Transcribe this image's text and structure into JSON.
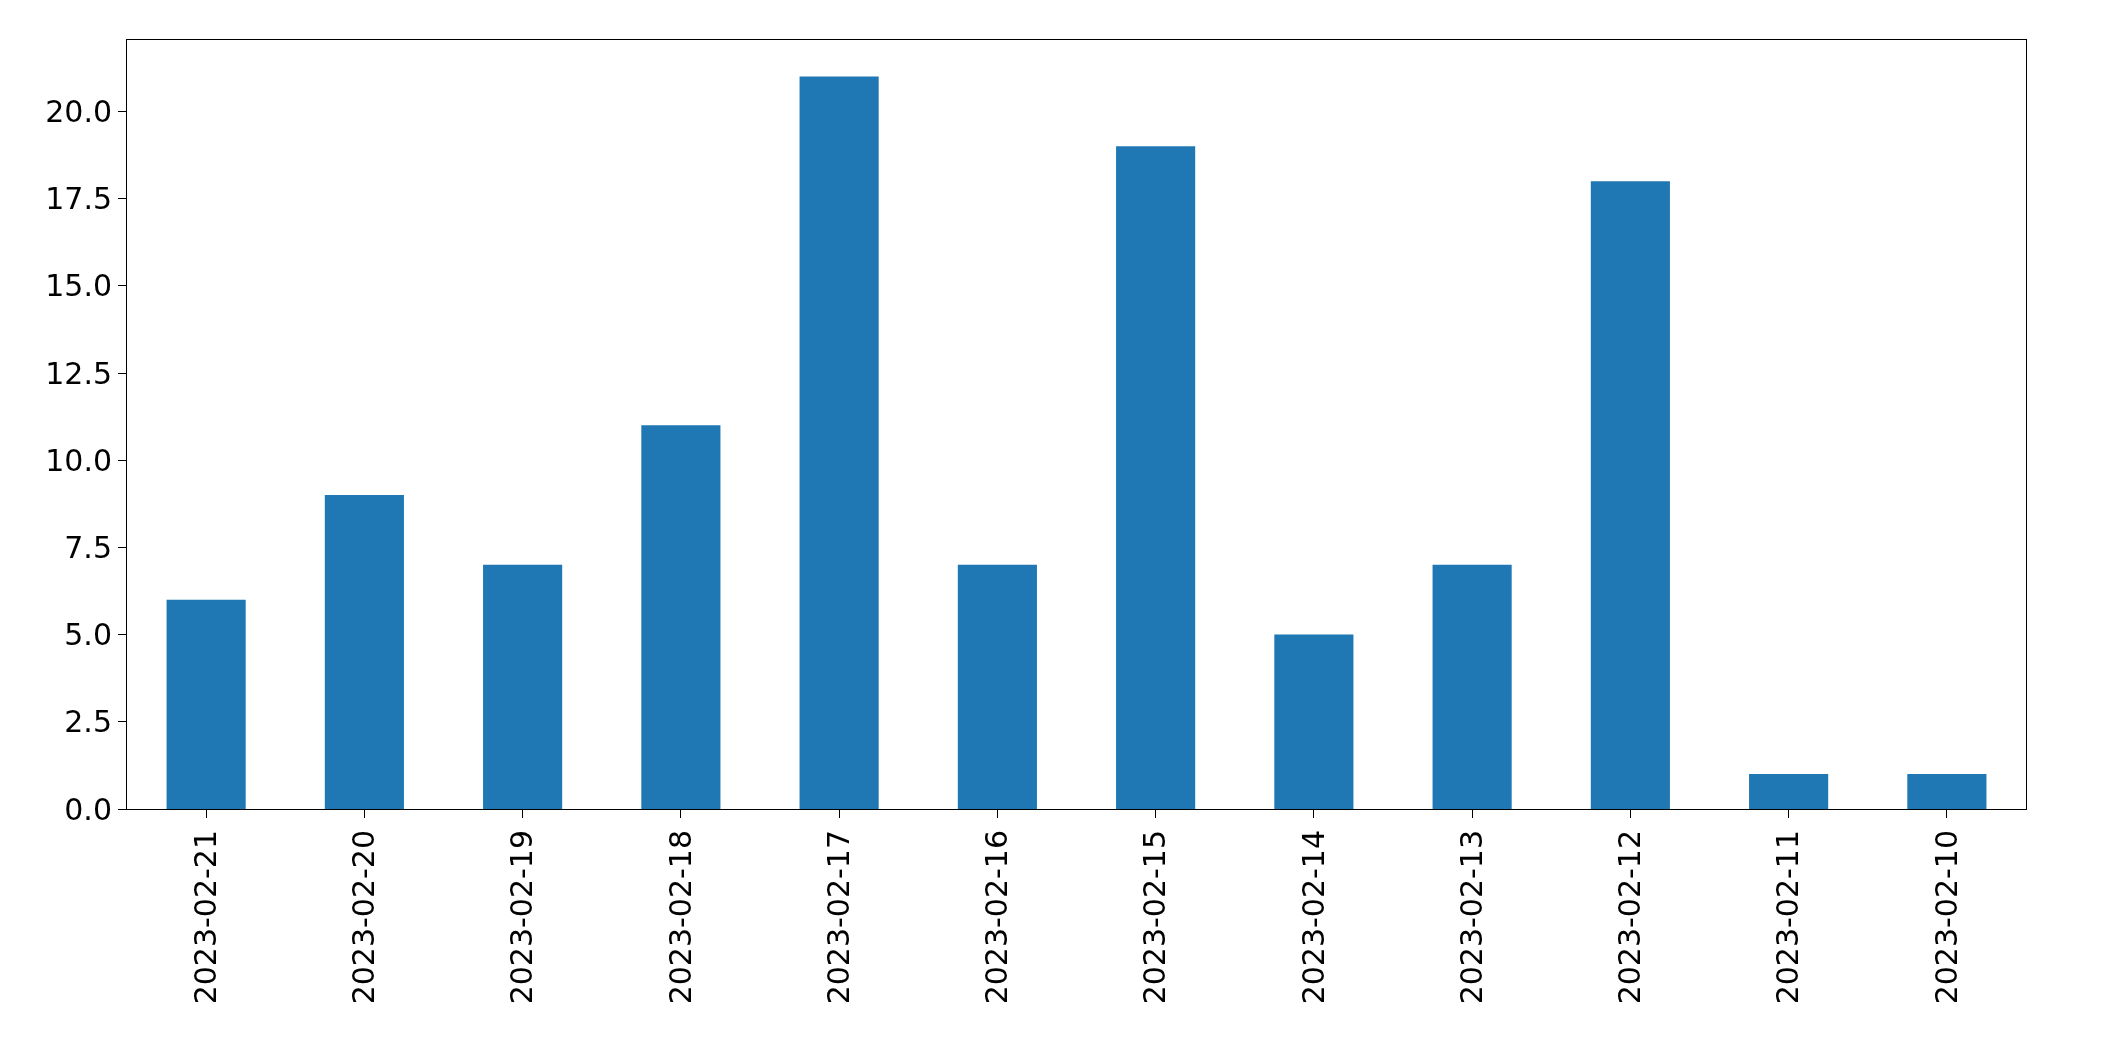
{
  "chart_data": {
    "type": "bar",
    "categories": [
      "2023-02-21",
      "2023-02-20",
      "2023-02-19",
      "2023-02-18",
      "2023-02-17",
      "2023-02-16",
      "2023-02-15",
      "2023-02-14",
      "2023-02-13",
      "2023-02-12",
      "2023-02-11",
      "2023-02-10"
    ],
    "values": [
      6,
      9,
      7,
      11,
      21,
      7,
      19,
      5,
      7,
      18,
      1,
      1
    ],
    "color": "#1f77b4",
    "ylim": [
      0,
      22.05
    ],
    "yticks": [
      {
        "value": 0,
        "label": "0.0"
      },
      {
        "value": 2.5,
        "label": "2.5"
      },
      {
        "value": 5,
        "label": "5.0"
      },
      {
        "value": 7.5,
        "label": "7.5"
      },
      {
        "value": 10,
        "label": "10.0"
      },
      {
        "value": 12.5,
        "label": "12.5"
      },
      {
        "value": 15,
        "label": "15.0"
      },
      {
        "value": 17.5,
        "label": "17.5"
      },
      {
        "value": 20,
        "label": "20.0"
      }
    ],
    "orientation": "vertical"
  }
}
